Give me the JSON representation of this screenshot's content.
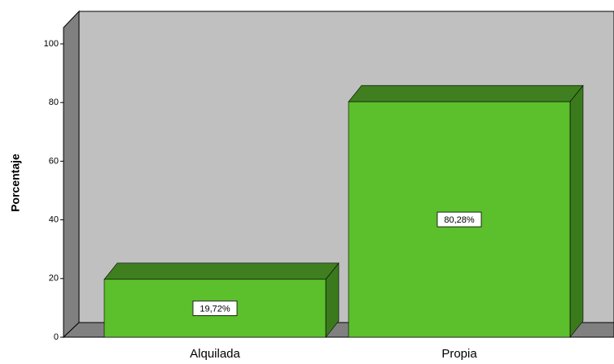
{
  "chart_data": {
    "type": "bar3d",
    "y_label": "Porcentaje",
    "categories": [
      "Alquilada",
      "Propia"
    ],
    "values": [
      19.72,
      80.28
    ],
    "value_labels": [
      "19,72%",
      "80,28%"
    ],
    "color": "#5cbf2c",
    "ylim": [
      0,
      100
    ],
    "yticks": [
      0,
      20,
      40,
      60,
      80,
      100
    ]
  }
}
